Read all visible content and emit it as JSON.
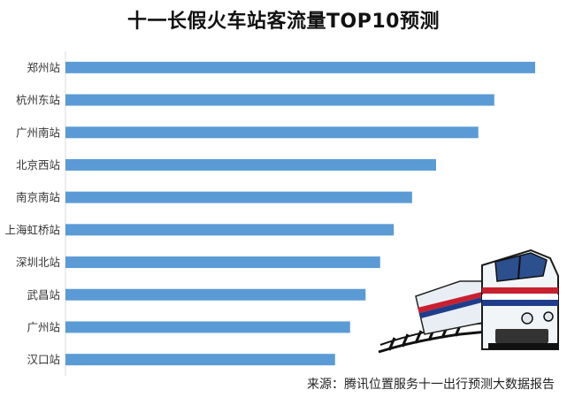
{
  "colors": {
    "bar": "#5b9bd5",
    "axis": "#d9d9d9",
    "label": "#333333"
  },
  "chart_data": {
    "type": "bar",
    "orientation": "horizontal",
    "title": "十一长假火车站客流量TOP10预测",
    "categories": [
      "郑州站",
      "杭州东站",
      "广州南站",
      "北京西站",
      "南京南站",
      "上海虹桥站",
      "深圳北站",
      "武昌站",
      "广州站",
      "汉口站"
    ],
    "values": [
      100,
      91.3,
      87.9,
      78.9,
      73.8,
      69.9,
      67.0,
      63.9,
      60.6,
      57.4
    ],
    "xlim": [
      0,
      100
    ],
    "grid": false,
    "legend": "none"
  },
  "source": "来源：腾讯位置服务十一出行预测大数据报告",
  "illustration": "train-icon"
}
